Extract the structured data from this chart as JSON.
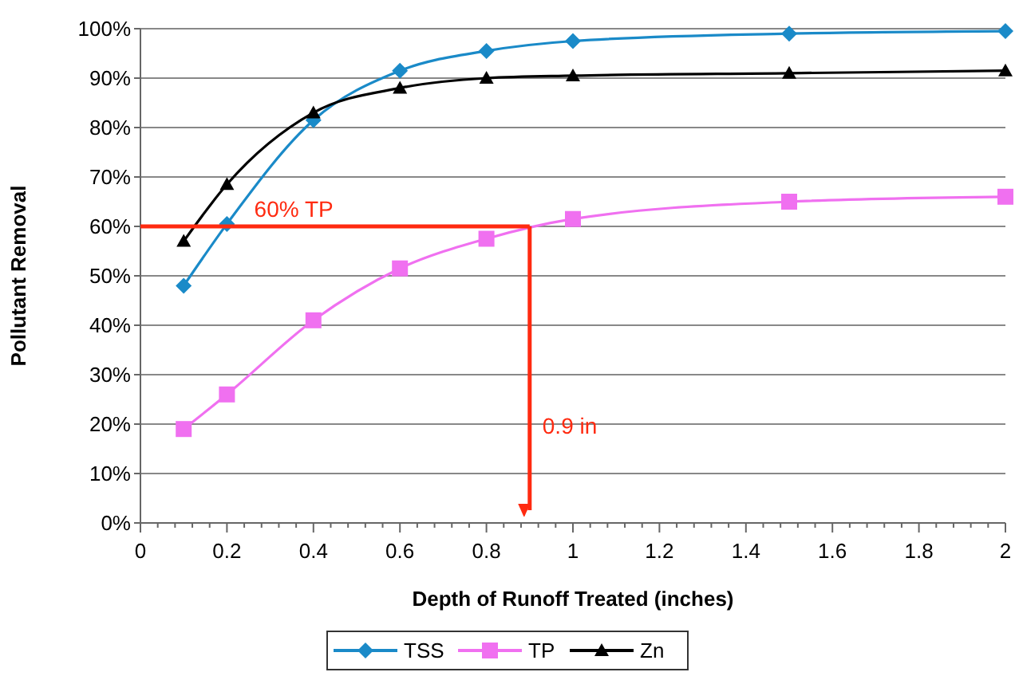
{
  "chart_data": {
    "type": "line",
    "xlabel": "Depth of Runoff Treated (inches)",
    "ylabel": "Pollutant Removal",
    "x": [
      0.1,
      0.2,
      0.4,
      0.6,
      0.8,
      1,
      1.5,
      2
    ],
    "series": [
      {
        "name": "TSS",
        "color": "#1a8ac8",
        "marker": "diamond",
        "values": [
          48,
          60.5,
          81.5,
          91.5,
          95.5,
          97.5,
          99,
          99.5
        ]
      },
      {
        "name": "TP",
        "color": "#f070f0",
        "marker": "square",
        "values": [
          19,
          26,
          41,
          51.5,
          57.5,
          61.5,
          65,
          66
        ]
      },
      {
        "name": "Zn",
        "color": "#000000",
        "marker": "triangle",
        "values": [
          57,
          68.5,
          83,
          88,
          90,
          90.5,
          91,
          91.5
        ]
      }
    ],
    "xlim": [
      0,
      2
    ],
    "xticks": [
      0,
      0.2,
      0.4,
      0.6,
      0.8,
      1,
      1.2,
      1.4,
      1.6,
      1.8,
      2
    ],
    "ylim": [
      0,
      100
    ],
    "yticks": [
      {
        "value": 0,
        "label": "0%"
      },
      {
        "value": 10,
        "label": "10%"
      },
      {
        "value": 20,
        "label": "20%"
      },
      {
        "value": 30,
        "label": "30%"
      },
      {
        "value": 40,
        "label": "40%"
      },
      {
        "value": 50,
        "label": "50%"
      },
      {
        "value": 60,
        "label": "60%"
      },
      {
        "value": 70,
        "label": "70%"
      },
      {
        "value": 80,
        "label": "80%"
      },
      {
        "value": 90,
        "label": "90%"
      },
      {
        "value": 100,
        "label": "100%"
      }
    ],
    "grid": "y",
    "legend": "bottom",
    "line_style": "solid",
    "ref_lines": [
      {
        "axis": "y",
        "value": 60,
        "label": "60% TP",
        "color": "#ff2a10"
      },
      {
        "axis": "x",
        "value": 0.9,
        "label": "0.9 in",
        "color": "#ff2a10"
      }
    ]
  }
}
